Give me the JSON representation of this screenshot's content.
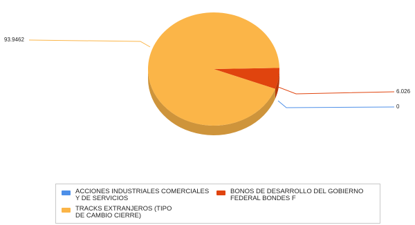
{
  "chart_data": {
    "type": "pie",
    "title": "",
    "slices": [
      {
        "label": "ACCIONES INDUSTRIALES COMERCIALES\nY DE SERVICIOS",
        "value": 0,
        "value_label": "0",
        "color": "#4d8fe8"
      },
      {
        "label": "BONOS DE DESARROLLO DEL GOBIERNO\nFEDERAL BONDES F",
        "value": 6.026,
        "value_label": "6.026",
        "color": "#e0440e"
      },
      {
        "label": "TRACKS EXTRANJEROS (TIPO\nDE CAMBIO CIERRE)",
        "value": 93.9462,
        "value_label": "93.9462",
        "color": "#fbb548"
      }
    ],
    "style": "3d-tilted",
    "legend_position": "bottom"
  }
}
